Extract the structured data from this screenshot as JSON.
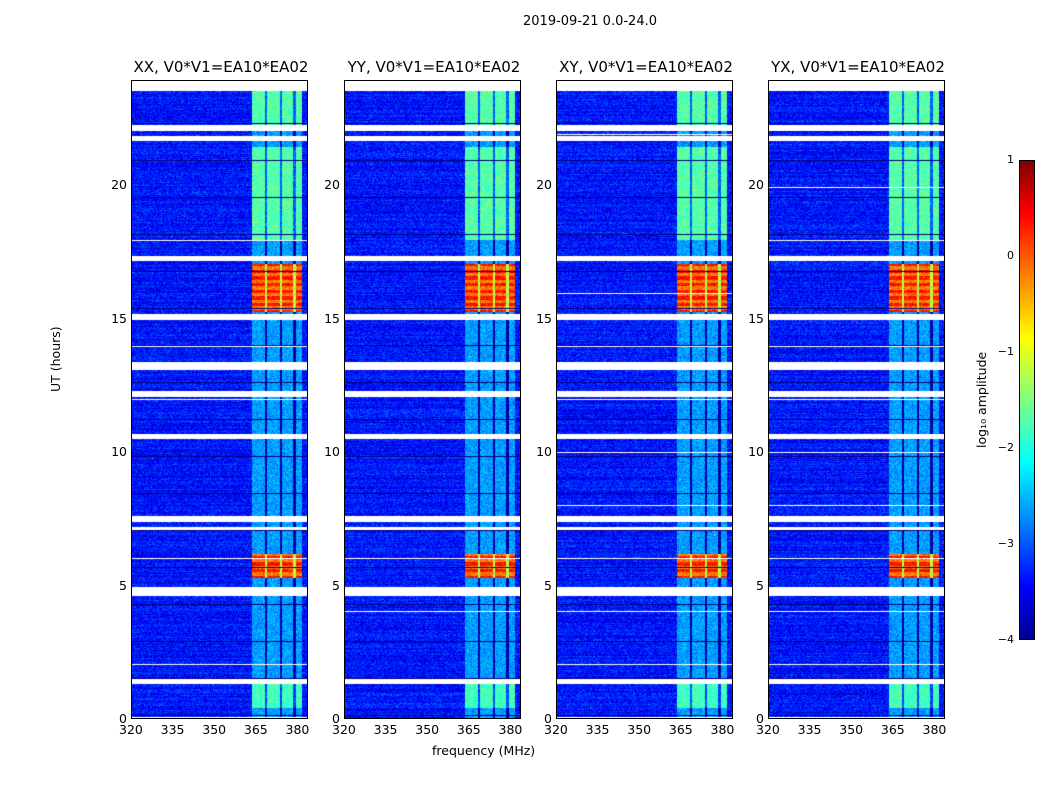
{
  "chart_data": {
    "type": "heatmap",
    "title": "2019-09-21 0.0-24.0",
    "xlabel": "frequency (MHz)",
    "ylabel": "UT (hours)",
    "xlim": [
      320,
      384
    ],
    "ylim": [
      0,
      24
    ],
    "xticks": [
      "320",
      "335",
      "350",
      "365",
      "380"
    ],
    "yticks": [
      "0",
      "5",
      "10",
      "15",
      "20"
    ],
    "panels": [
      {
        "title": "XX, V0*V1=EA10*EA02"
      },
      {
        "title": "YY, V0*V1=EA10*EA02"
      },
      {
        "title": "XY, V0*V1=EA10*EA02"
      },
      {
        "title": "YX, V0*V1=EA10*EA02"
      }
    ],
    "rfi_band_mhz": [
      363,
      381
    ],
    "strong_rfi_hours": [
      [
        15.3,
        17.1
      ],
      [
        5.3,
        6.2
      ]
    ],
    "flagged_hours": [
      [
        22.1,
        22.3
      ],
      [
        21.7,
        21.9
      ],
      [
        17.2,
        17.4
      ],
      [
        15.0,
        15.2
      ],
      [
        13.1,
        13.4
      ],
      [
        12.1,
        12.3
      ],
      [
        10.5,
        10.7
      ],
      [
        7.4,
        7.6
      ],
      [
        7.1,
        7.2
      ],
      [
        4.6,
        4.95
      ],
      [
        1.3,
        1.5
      ],
      [
        23.6,
        23.9
      ]
    ],
    "colorbar": {
      "label": "log₁₀ amplitude",
      "range": [
        -4,
        1
      ],
      "ticks": [
        "1",
        "0",
        "−1",
        "−2",
        "−3",
        "−4"
      ],
      "colormap": "jet"
    }
  }
}
